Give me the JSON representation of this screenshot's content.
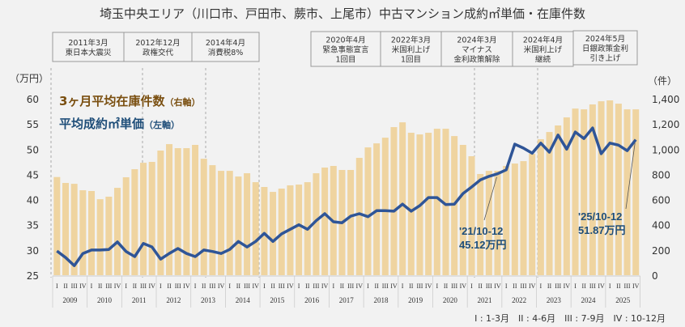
{
  "chart_data": {
    "type": "bar+line",
    "title": "埼玉中央エリア（川口市、戸田市、蕨市、上尾市）中古マンション成約㎡単価・在庫件数",
    "left_axis": {
      "unit_label": "（万円）",
      "range": [
        25,
        60
      ],
      "ticks": [
        25,
        30,
        35,
        40,
        45,
        50,
        55,
        60
      ]
    },
    "right_axis": {
      "unit_label": "（件）",
      "range": [
        0,
        1400
      ],
      "ticks": [
        "0",
        "200",
        "400",
        "600",
        "800",
        "1,000",
        "1,200",
        "1,400"
      ]
    },
    "years": [
      "2009",
      "2010",
      "2011",
      "2012",
      "2013",
      "2014",
      "2015",
      "2016",
      "2017",
      "2018",
      "2019",
      "2020",
      "2021",
      "2022",
      "2023",
      "2024",
      "2025"
    ],
    "quarters": [
      "I",
      "II",
      "III",
      "IV"
    ],
    "quarter_note": "I : 1-3月　II : 4-6月　III : 7-9月　IV : 10-12月",
    "series": [
      {
        "name": "3ヶ月平均在庫件数",
        "axis_note": "（右軸）",
        "type": "bar",
        "color": "#efd4a0",
        "label_color": "#7a4f10",
        "values": [
          779,
          732,
          725,
          674,
          668,
          603,
          623,
          693,
          777,
          841,
          892,
          899,
          989,
          1040,
          1008,
          1008,
          1034,
          924,
          873,
          828,
          828,
          783,
          809,
          738,
          700,
          661,
          687,
          713,
          719,
          738,
          809,
          854,
          867,
          835,
          835,
          931,
          1014,
          1046,
          1091,
          1175,
          1213,
          1130,
          1117,
          1130,
          1162,
          1162,
          1104,
          1034,
          944,
          803,
          828,
          828,
          867,
          886,
          905,
          963,
          1079,
          1136,
          1188,
          1252,
          1322,
          1316,
          1355,
          1380,
          1387,
          1361,
          1316,
          1316
        ]
      },
      {
        "name": "平均成約㎡単価",
        "axis_note": "（左軸）",
        "type": "line",
        "color": "#2f5597",
        "label_color": "#1f4e79",
        "values": [
          29.8,
          28.5,
          26.9,
          29.3,
          30.0,
          30.0,
          30.1,
          31.6,
          29.7,
          28.7,
          31.3,
          30.6,
          28.2,
          29.3,
          30.3,
          29.3,
          28.7,
          30.0,
          29.7,
          29.3,
          30.1,
          31.7,
          30.6,
          31.7,
          33.3,
          31.7,
          33.2,
          34.1,
          35.0,
          34.1,
          35.8,
          37.2,
          35.6,
          35.4,
          36.7,
          37.2,
          36.6,
          37.8,
          37.8,
          37.7,
          39.1,
          37.7,
          38.8,
          40.4,
          40.4,
          39.0,
          39.1,
          41.2,
          42.5,
          43.9,
          44.6,
          45.12,
          45.9,
          51.0,
          50.2,
          49.2,
          51.2,
          49.4,
          52.8,
          50.0,
          53.4,
          52.1,
          54.2,
          49.1,
          51.2,
          50.8,
          49.7,
          51.87
        ]
      }
    ],
    "annotations": [
      {
        "period": "'21/10-12",
        "value": "45.12万円",
        "index": 51
      },
      {
        "period": "'25/10-12",
        "value": "51.87万円",
        "index": 67
      }
    ],
    "events": [
      {
        "date": "2011年3月",
        "lines": [
          "東日本大震災"
        ]
      },
      {
        "date": "2012年12月",
        "lines": [
          "政権交代"
        ]
      },
      {
        "date": "2014年4月",
        "lines": [
          "消費税8%"
        ]
      },
      {
        "date": "2020年4月",
        "lines": [
          "緊急事態宣言",
          "1回目"
        ]
      },
      {
        "date": "2022年3月",
        "lines": [
          "米国利上げ",
          "1回目"
        ]
      },
      {
        "date": "2024年3月",
        "lines": [
          "マイナス",
          "金利政策解除"
        ]
      },
      {
        "date": "2024年4月",
        "lines": [
          "米国利上げ",
          "継続"
        ]
      },
      {
        "date": "2024年5月",
        "lines": [
          "日銀政策金利",
          "引き上げ"
        ]
      }
    ],
    "grid": false,
    "legend_placement": "top-left"
  }
}
